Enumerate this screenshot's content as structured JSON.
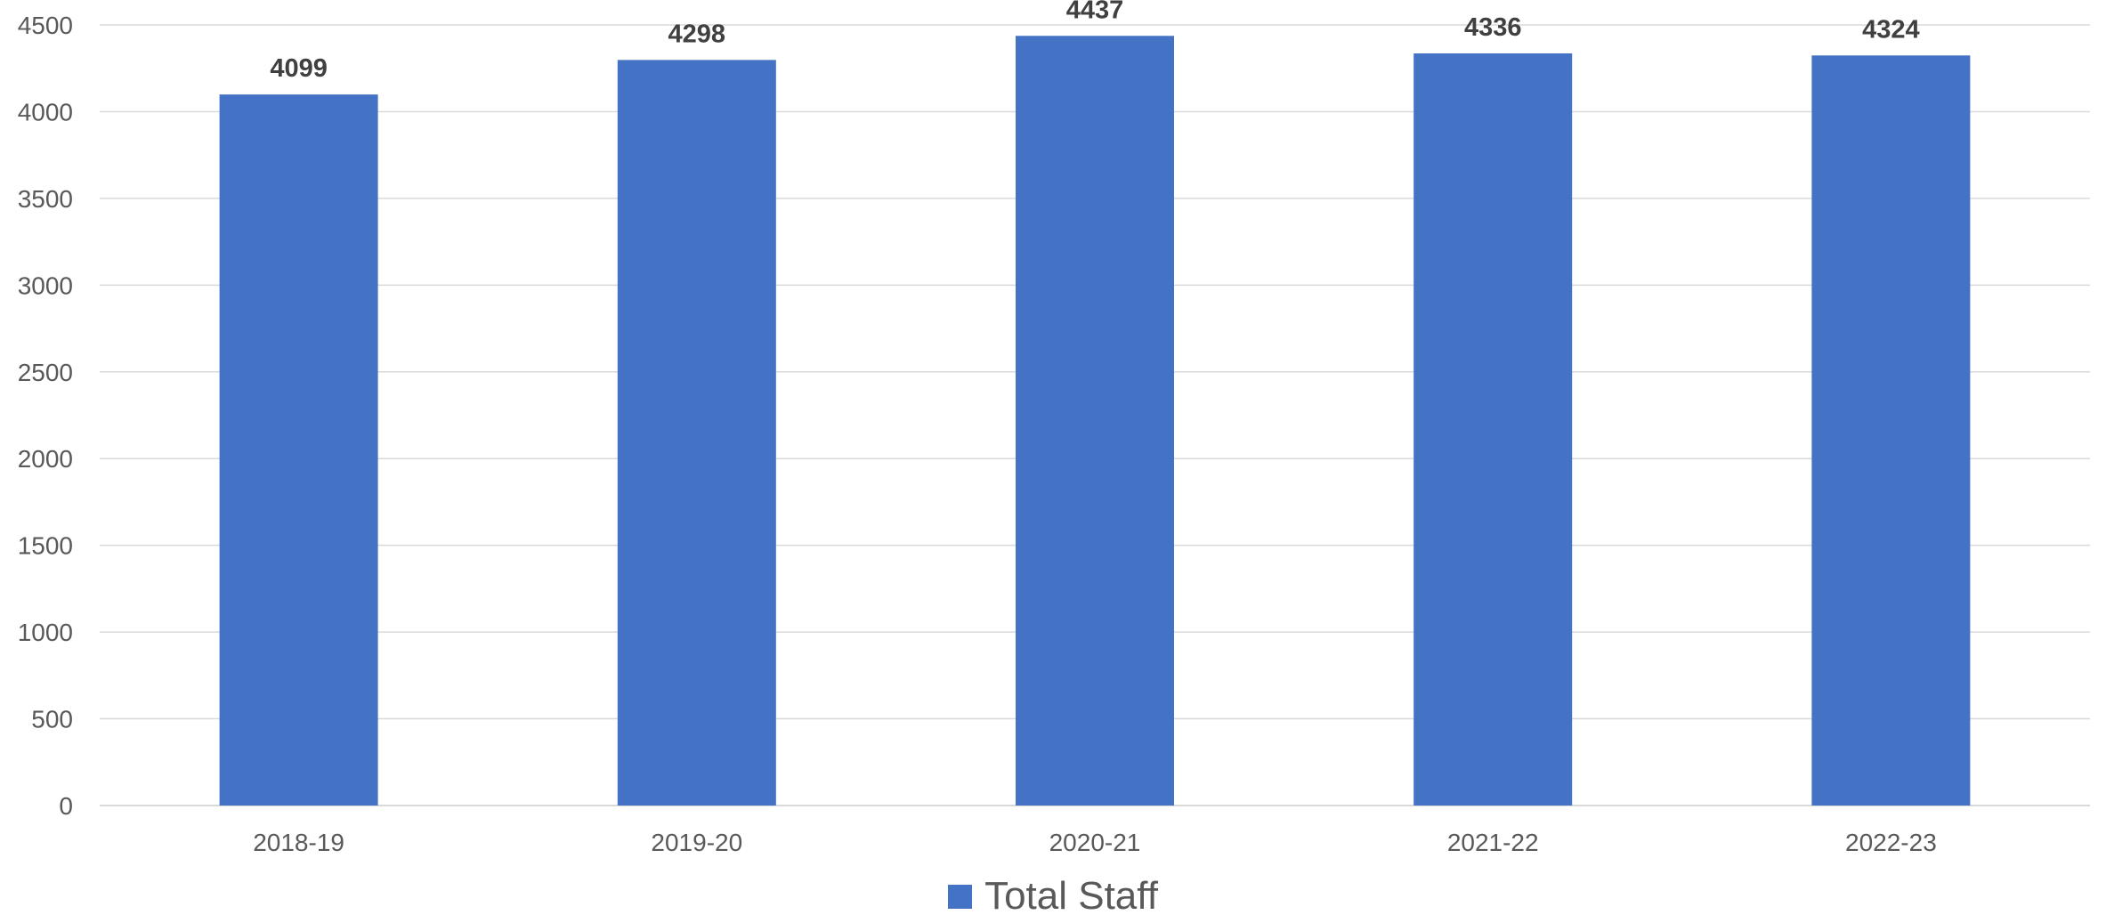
{
  "chart_data": {
    "type": "bar",
    "categories": [
      "2018-19",
      "2019-20",
      "2020-21",
      "2021-22",
      "2022-23"
    ],
    "series": [
      {
        "name": "Total Staff",
        "values": [
          4099,
          4298,
          4437,
          4336,
          4324
        ],
        "color": "#4472C4"
      }
    ],
    "data_labels": [
      "4099",
      "4298",
      "4437",
      "4336",
      "4324"
    ],
    "title": "",
    "xlabel": "",
    "ylabel": "",
    "ylim": [
      0,
      4500
    ],
    "y_ticks": [
      0,
      500,
      1000,
      1500,
      2000,
      2500,
      3000,
      3500,
      4000,
      4500
    ],
    "grid": true,
    "legend_position": "bottom"
  },
  "colors": {
    "bar": "#4472C4",
    "grid": "#d9d9d9",
    "axis_text": "#595959",
    "data_label": "#404040"
  },
  "legend": {
    "label": "Total Staff"
  }
}
